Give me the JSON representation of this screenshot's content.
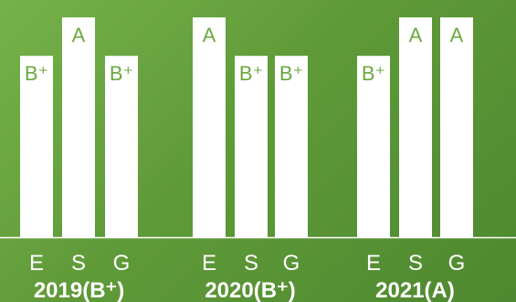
{
  "chart_data": {
    "type": "bar",
    "title": "",
    "xlabel": "",
    "ylabel": "",
    "grid": false,
    "legend": "none",
    "grade_scale": [
      "B",
      "B+",
      "A-",
      "A"
    ],
    "grade_values": {
      "B+": 3.3,
      "A": 4.0
    },
    "ylim": [
      0,
      4.2
    ],
    "groups": [
      {
        "label": "2019(B⁺)",
        "bars": [
          {
            "category": "E",
            "grade": "B⁺",
            "value": 3.3
          },
          {
            "category": "S",
            "grade": "A",
            "value": 4.0
          },
          {
            "category": "G",
            "grade": "B⁺",
            "value": 3.3
          }
        ]
      },
      {
        "label": "2020(B⁺)",
        "bars": [
          {
            "category": "E",
            "grade": "A",
            "value": 4.0
          },
          {
            "category": "S",
            "grade": "B⁺",
            "value": 3.3
          },
          {
            "category": "G",
            "grade": "B⁺",
            "value": 3.3
          }
        ]
      },
      {
        "label": "2021(A)",
        "bars": [
          {
            "category": "E",
            "grade": "B⁺",
            "value": 3.3
          },
          {
            "category": "S",
            "grade": "A",
            "value": 4.0
          },
          {
            "category": "G",
            "grade": "A",
            "value": 4.0
          }
        ]
      }
    ],
    "colors": {
      "bar": "#ffffff",
      "grade_text": "#6aa93e",
      "axis_text": "#ffffff",
      "baseline": "#ffffff"
    }
  }
}
